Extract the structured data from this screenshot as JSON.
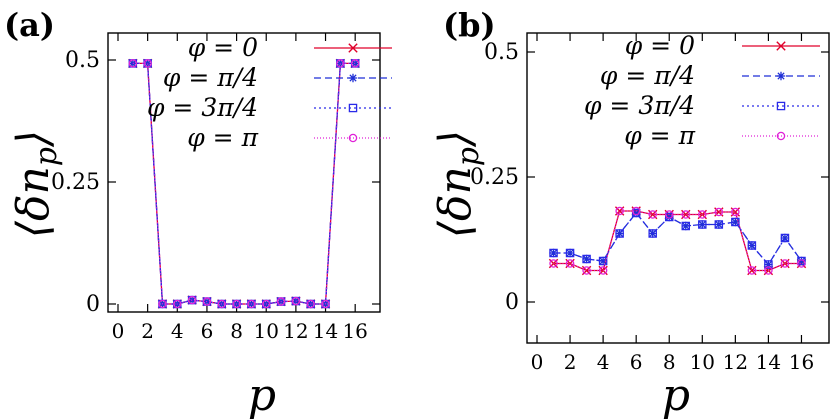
{
  "chart_data": [
    {
      "panel_label": "(a)",
      "type": "line",
      "xlabel": "p",
      "ylabel": "⟨δn_p⟩",
      "xlim": [
        0,
        17
      ],
      "ylim": [
        -0.03,
        0.55
      ],
      "xticks": [
        "0",
        "2",
        "4",
        "6",
        "8",
        "10",
        "12",
        "14",
        "16"
      ],
      "yticks": [
        "0",
        "0.25",
        "0.5"
      ],
      "grid": false,
      "legend_position": "top-right",
      "x": [
        1,
        2,
        3,
        4,
        5,
        6,
        7,
        8,
        9,
        10,
        11,
        12,
        13,
        14,
        15,
        16
      ],
      "series": [
        {
          "name": "φ = 0",
          "color": "#e0002a",
          "marker": "x",
          "dash": "none",
          "values": [
            0.493,
            0.493,
            0.0,
            0.0,
            0.008,
            0.005,
            0.0,
            0.0,
            0.0,
            0.0,
            0.005,
            0.006,
            0.0,
            0.0,
            0.493,
            0.493
          ]
        },
        {
          "name": "φ = π/4",
          "color": "#1f2fd6",
          "marker": "star",
          "dash": "7,4",
          "values": [
            0.493,
            0.493,
            0.0,
            0.0,
            0.008,
            0.005,
            0.0,
            0.0,
            0.0,
            0.0,
            0.005,
            0.006,
            0.0,
            0.0,
            0.493,
            0.493
          ]
        },
        {
          "name": "φ = 3π/4",
          "color": "#2a2ae8",
          "marker": "square",
          "dash": "2,3",
          "values": [
            0.493,
            0.493,
            0.0,
            0.0,
            0.008,
            0.005,
            0.0,
            0.0,
            0.0,
            0.0,
            0.005,
            0.006,
            0.0,
            0.0,
            0.493,
            0.493
          ]
        },
        {
          "name": "φ = π",
          "color": "#e020d8",
          "marker": "circle",
          "dash": "1,2",
          "values": [
            0.493,
            0.493,
            0.0,
            0.0,
            0.008,
            0.005,
            0.0,
            0.0,
            0.0,
            0.0,
            0.005,
            0.006,
            0.0,
            0.0,
            0.493,
            0.493
          ]
        }
      ]
    },
    {
      "panel_label": "(b)",
      "type": "line",
      "xlabel": "p",
      "ylabel": "⟨δn_p⟩",
      "xlim": [
        0,
        17
      ],
      "ylim": [
        -0.03,
        0.55
      ],
      "xticks": [
        "0",
        "2",
        "4",
        "6",
        "8",
        "10",
        "12",
        "14",
        "16"
      ],
      "yticks": [
        "0",
        "0.25",
        "0.5"
      ],
      "grid": false,
      "legend_position": "top-right",
      "x": [
        1,
        2,
        3,
        4,
        5,
        6,
        7,
        8,
        9,
        10,
        11,
        12,
        13,
        14,
        15,
        16
      ],
      "series": [
        {
          "name": "φ = 0",
          "color": "#e0002a",
          "marker": "x",
          "dash": "none",
          "values": [
            0.077,
            0.077,
            0.063,
            0.063,
            0.182,
            0.182,
            0.175,
            0.175,
            0.175,
            0.175,
            0.18,
            0.18,
            0.063,
            0.063,
            0.077,
            0.077
          ]
        },
        {
          "name": "φ = π/4",
          "color": "#1f2fd6",
          "marker": "star",
          "dash": "7,4",
          "values": [
            0.098,
            0.098,
            0.086,
            0.082,
            0.137,
            0.178,
            0.137,
            0.17,
            0.152,
            0.155,
            0.155,
            0.16,
            0.113,
            0.075,
            0.128,
            0.082
          ]
        },
        {
          "name": "φ = 3π/4",
          "color": "#2a2ae8",
          "marker": "square",
          "dash": "2,3",
          "values": [
            0.098,
            0.098,
            0.086,
            0.082,
            0.137,
            0.178,
            0.137,
            0.17,
            0.152,
            0.155,
            0.155,
            0.16,
            0.113,
            0.075,
            0.128,
            0.082
          ]
        },
        {
          "name": "φ = π",
          "color": "#e020d8",
          "marker": "circle",
          "dash": "1,2",
          "values": [
            0.077,
            0.077,
            0.063,
            0.063,
            0.182,
            0.182,
            0.175,
            0.175,
            0.175,
            0.175,
            0.18,
            0.18,
            0.063,
            0.063,
            0.077,
            0.077
          ]
        }
      ]
    }
  ]
}
